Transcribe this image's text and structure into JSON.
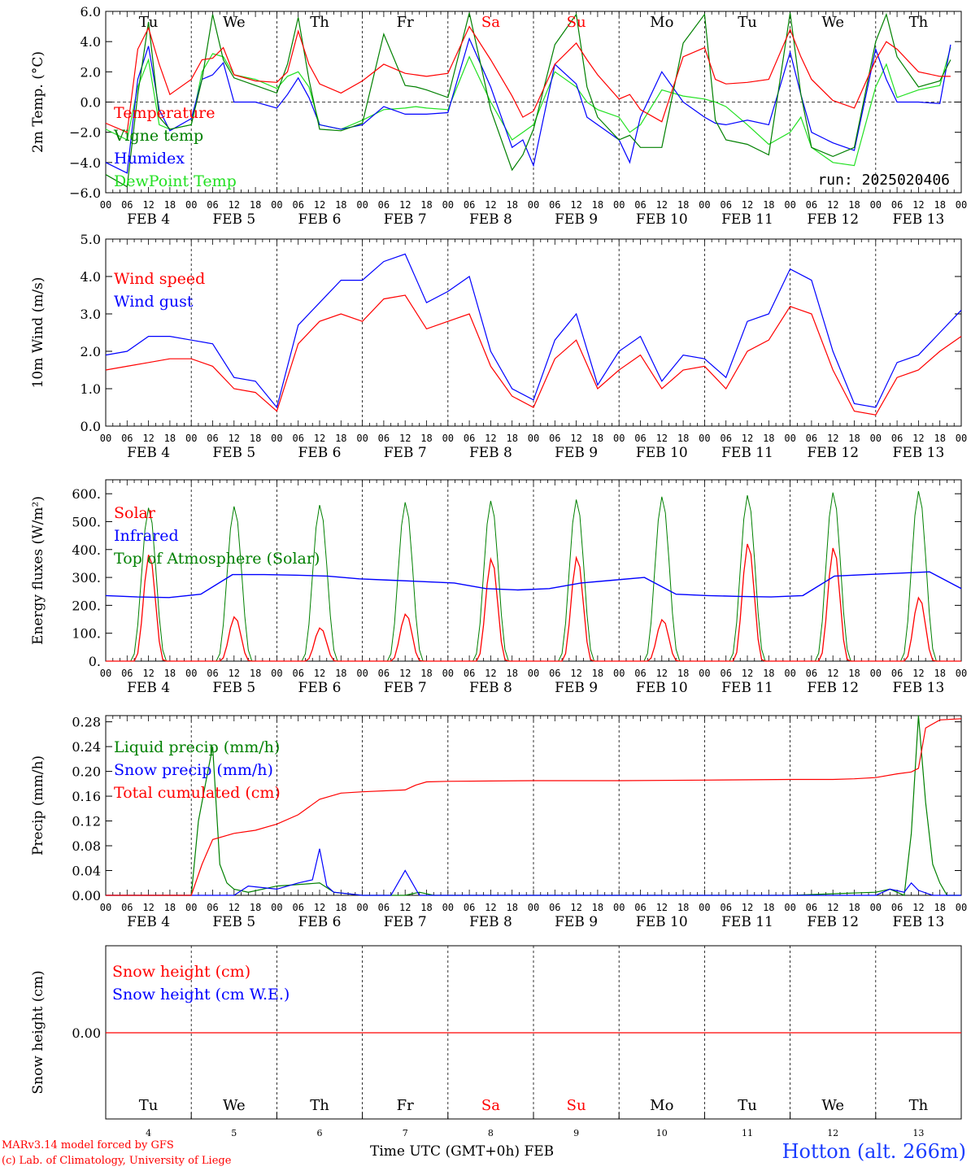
{
  "days": [
    "Tu",
    "We",
    "Th",
    "Fr",
    "Sa",
    "Su",
    "Mo",
    "Tu",
    "We",
    "Th"
  ],
  "weekend_idx": [
    4,
    5
  ],
  "date_labels": [
    "FEB  4",
    "FEB  5",
    "FEB  6",
    "FEB  7",
    "FEB  8",
    "FEB  9",
    "FEB 10",
    "FEB 11",
    "FEB 12",
    "FEB 13"
  ],
  "day_numbers": [
    "4",
    "5",
    "6",
    "7",
    "8",
    "9",
    "10",
    "11",
    "12",
    "13"
  ],
  "hour_ticks": [
    "00",
    "06",
    "12",
    "18"
  ],
  "footer": {
    "model": "MARv3.14 model forced by GFS",
    "lab": "(c) Lab. of Climatology, University of Liege",
    "xlabel": "Time UTC (GMT+0h)",
    "month": "FEB",
    "station": "Hotton (alt. 266m)"
  },
  "colors": {
    "red": "#ff0000",
    "green": "#008000",
    "blue": "#0000ff",
    "lime": "#22e022"
  },
  "chart_data": [
    {
      "type": "line",
      "ylabel": "2m Temp. (°C)",
      "ylim": [
        -6,
        6
      ],
      "yticks": [
        "6.0",
        "4.0",
        "2.0",
        "0.0",
        "−2.0",
        "−4.0",
        "−6.0"
      ],
      "annotation": "run: 2025020406",
      "x_unit": "hours since FEB 4 00 UTC",
      "series": [
        {
          "name": "Temperature",
          "color": "red",
          "x": [
            0,
            6,
            9,
            12,
            15,
            18,
            24,
            27,
            30,
            33,
            36,
            42,
            48,
            51,
            54,
            57,
            60,
            66,
            72,
            78,
            84,
            87,
            90,
            96,
            102,
            108,
            114,
            117,
            120,
            126,
            132,
            135,
            138,
            144,
            147,
            150,
            156,
            162,
            168,
            171,
            174,
            180,
            186,
            192,
            195,
            198,
            204,
            210,
            216,
            219,
            222,
            228,
            234,
            237
          ],
          "y": [
            -1.4,
            -2.0,
            3.5,
            4.9,
            2.5,
            0.5,
            1.5,
            2.8,
            2.9,
            3.6,
            1.8,
            1.4,
            1.3,
            2.0,
            4.7,
            2.5,
            1.2,
            0.6,
            1.4,
            2.5,
            1.9,
            1.8,
            1.7,
            1.9,
            5.0,
            2.8,
            0.4,
            -1.0,
            -0.6,
            2.5,
            3.9,
            2.8,
            1.8,
            0.2,
            0.5,
            -0.5,
            -1.3,
            3.0,
            3.6,
            1.5,
            1.2,
            1.3,
            1.5,
            4.8,
            3.0,
            1.5,
            0.1,
            -0.4,
            2.8,
            4.0,
            3.5,
            2.0,
            1.7,
            1.7
          ]
        },
        {
          "name": "Vigne temp",
          "color": "green",
          "x": [
            0,
            6,
            9,
            12,
            15,
            18,
            24,
            27,
            30,
            33,
            36,
            42,
            48,
            51,
            54,
            57,
            60,
            66,
            72,
            78,
            84,
            87,
            90,
            96,
            102,
            108,
            114,
            117,
            120,
            126,
            132,
            135,
            138,
            144,
            147,
            150,
            156,
            162,
            168,
            171,
            174,
            180,
            186,
            192,
            195,
            198,
            204,
            210,
            216,
            219,
            222,
            228,
            234,
            237
          ],
          "y": [
            -4.8,
            -5.6,
            0.5,
            5.3,
            -1.0,
            -1.8,
            -1.5,
            1.5,
            5.8,
            2.8,
            1.6,
            1.1,
            0.6,
            2.5,
            5.6,
            1.5,
            -1.8,
            -1.9,
            -1.4,
            4.5,
            1.1,
            1.0,
            0.8,
            0.3,
            5.9,
            -0.5,
            -4.5,
            -3.5,
            -1.8,
            3.8,
            5.8,
            1.0,
            -1.0,
            -2.5,
            -2.2,
            -3.0,
            -3.0,
            3.9,
            5.8,
            -1.2,
            -2.5,
            -2.8,
            -3.5,
            5.9,
            0.5,
            -3.0,
            -3.6,
            -3.0,
            4.0,
            5.8,
            3.0,
            1.0,
            1.4,
            2.8
          ]
        },
        {
          "name": "Humidex",
          "color": "blue",
          "x": [
            0,
            6,
            9,
            12,
            15,
            18,
            24,
            27,
            30,
            33,
            36,
            42,
            48,
            51,
            54,
            57,
            60,
            66,
            72,
            78,
            84,
            87,
            90,
            96,
            102,
            108,
            114,
            117,
            120,
            126,
            132,
            135,
            138,
            144,
            147,
            150,
            156,
            162,
            168,
            171,
            174,
            180,
            186,
            192,
            195,
            198,
            204,
            210,
            216,
            219,
            222,
            228,
            234,
            237
          ],
          "y": [
            -4.0,
            -4.7,
            1.5,
            3.7,
            -0.5,
            -1.9,
            -1.1,
            1.5,
            1.8,
            2.6,
            0.0,
            0.0,
            -0.4,
            0.5,
            1.6,
            0.3,
            -1.5,
            -1.8,
            -1.5,
            -0.3,
            -0.8,
            -0.8,
            -0.8,
            -0.7,
            4.2,
            1.0,
            -3.0,
            -2.5,
            -4.2,
            2.5,
            1.2,
            -1.0,
            -1.5,
            -2.5,
            -4.0,
            -1.0,
            2.0,
            0.0,
            -1.0,
            -1.4,
            -1.5,
            -1.2,
            -1.5,
            3.3,
            0.5,
            -2.0,
            -2.7,
            -3.2,
            3.5,
            1.5,
            0.0,
            0.0,
            -0.1,
            3.8
          ]
        },
        {
          "name": "DewPoint Temp",
          "color": "lime",
          "x": [
            0,
            6,
            9,
            12,
            15,
            18,
            24,
            27,
            30,
            33,
            36,
            42,
            48,
            51,
            54,
            57,
            60,
            66,
            72,
            78,
            84,
            87,
            90,
            96,
            102,
            108,
            114,
            117,
            120,
            126,
            132,
            135,
            138,
            144,
            147,
            150,
            156,
            162,
            168,
            171,
            174,
            180,
            186,
            192,
            195,
            198,
            204,
            210,
            216,
            219,
            222,
            228,
            234,
            237
          ],
          "y": [
            -1.8,
            -2.5,
            1.0,
            2.8,
            -1.5,
            -1.8,
            -1.5,
            2.0,
            3.2,
            3.0,
            1.8,
            1.5,
            0.9,
            1.7,
            2.0,
            1.0,
            -1.5,
            -1.8,
            -1.2,
            -0.5,
            -0.4,
            -0.3,
            -0.4,
            -0.5,
            3.0,
            0.0,
            -2.5,
            -2.0,
            -1.5,
            2.0,
            1.0,
            0.0,
            -0.5,
            -1.0,
            -2.0,
            -1.5,
            0.8,
            0.4,
            0.2,
            0.0,
            -0.3,
            -1.5,
            -2.8,
            -2.0,
            -1.0,
            -3.0,
            -4.0,
            -4.2,
            1.0,
            2.5,
            0.3,
            0.8,
            1.1,
            3.6
          ]
        }
      ]
    },
    {
      "type": "line",
      "ylabel": "10m Wind (m/s)",
      "ylim": [
        0,
        5
      ],
      "yticks": [
        "5.0",
        "4.0",
        "3.0",
        "2.0",
        "1.0",
        "0.0"
      ],
      "x_unit": "hours since FEB 4 00 UTC",
      "series": [
        {
          "name": "Wind speed",
          "color": "red",
          "x": [
            0,
            6,
            12,
            18,
            24,
            30,
            36,
            42,
            48,
            54,
            60,
            66,
            72,
            78,
            84,
            90,
            96,
            102,
            108,
            114,
            120,
            126,
            132,
            138,
            144,
            150,
            156,
            162,
            168,
            174,
            180,
            186,
            192,
            198,
            204,
            210,
            216,
            222,
            228,
            234,
            240
          ],
          "y": [
            1.5,
            1.6,
            1.7,
            1.8,
            1.8,
            1.6,
            1.0,
            0.9,
            0.4,
            2.2,
            2.8,
            3.0,
            2.8,
            3.4,
            3.5,
            2.6,
            2.8,
            3.0,
            1.6,
            0.8,
            0.5,
            1.8,
            2.3,
            1.0,
            1.5,
            1.9,
            1.0,
            1.5,
            1.6,
            1.0,
            2.0,
            2.3,
            3.2,
            3.0,
            1.5,
            0.4,
            0.3,
            1.3,
            1.5,
            2.0,
            2.4
          ]
        },
        {
          "name": "Wind gust",
          "color": "blue",
          "x": [
            0,
            6,
            12,
            18,
            24,
            30,
            36,
            42,
            48,
            54,
            60,
            66,
            72,
            78,
            84,
            90,
            96,
            102,
            108,
            114,
            120,
            126,
            132,
            138,
            144,
            150,
            156,
            162,
            168,
            174,
            180,
            186,
            192,
            198,
            204,
            210,
            216,
            222,
            228,
            234,
            240
          ],
          "y": [
            1.9,
            2.0,
            2.4,
            2.4,
            2.3,
            2.2,
            1.3,
            1.2,
            0.5,
            2.7,
            3.3,
            3.9,
            3.9,
            4.4,
            4.6,
            3.3,
            3.6,
            4.0,
            2.0,
            1.0,
            0.7,
            2.3,
            3.0,
            1.1,
            2.0,
            2.4,
            1.2,
            1.9,
            1.8,
            1.3,
            2.8,
            3.0,
            4.2,
            3.9,
            2.0,
            0.6,
            0.5,
            1.7,
            1.9,
            2.5,
            3.1
          ]
        }
      ]
    },
    {
      "type": "line",
      "ylabel": "Energy fluxes (W/m²)",
      "ylim": [
        0,
        650
      ],
      "yticks": [
        "600.",
        "500.",
        "400.",
        "300.",
        "200.",
        "100.",
        "0."
      ],
      "x_unit": "hours since FEB 4 00 UTC",
      "solar_daily_peaks": [
        385,
        160,
        120,
        170,
        370,
        375,
        150,
        425,
        410,
        230
      ],
      "toa_daily_peaks": [
        550,
        555,
        560,
        570,
        575,
        580,
        590,
        595,
        605,
        610
      ],
      "infrared": [
        235,
        230,
        228,
        240,
        310,
        310,
        308,
        305,
        295,
        290,
        285,
        280,
        260,
        255,
        260,
        280,
        290,
        300,
        240,
        235,
        232,
        230,
        235,
        305,
        310,
        315,
        320,
        260
      ],
      "series": [
        {
          "name": "Solar",
          "color": "red"
        },
        {
          "name": "Infrared",
          "color": "blue"
        },
        {
          "name": "Top of Atmosphere (Solar)",
          "color": "green"
        }
      ]
    },
    {
      "type": "line",
      "ylabel": "Precip (mm/h)",
      "ylim": [
        0,
        0.29
      ],
      "yticks": [
        "0.28",
        "0.24",
        "0.20",
        "0.16",
        "0.12",
        "0.08",
        "0.04",
        "0.00"
      ],
      "x_unit": "hours since FEB 4 00 UTC",
      "series": [
        {
          "name": "Liquid precip (mm/h)",
          "color": "green",
          "x": [
            0,
            24,
            26,
            28,
            30,
            32,
            34,
            36,
            40,
            44,
            48,
            60,
            64,
            72,
            84,
            88,
            92,
            96,
            120,
            144,
            168,
            192,
            216,
            220,
            224,
            226,
            228,
            230,
            232,
            234,
            236,
            240
          ],
          "y": [
            0,
            0,
            0.12,
            0.18,
            0.24,
            0.05,
            0.02,
            0.01,
            0.005,
            0.01,
            0.015,
            0.02,
            0.005,
            0.0,
            0.0,
            0.005,
            0.0,
            0.0,
            0.0,
            0.0,
            0.0,
            0.0,
            0.005,
            0.01,
            0.0,
            0.1,
            0.29,
            0.15,
            0.05,
            0.02,
            0.0,
            0.0
          ]
        },
        {
          "name": "Snow precip (mm/h)",
          "color": "blue",
          "x": [
            0,
            36,
            40,
            48,
            54,
            58,
            60,
            62,
            64,
            72,
            80,
            84,
            86,
            88,
            96,
            120,
            144,
            216,
            220,
            224,
            226,
            228,
            232,
            240
          ],
          "y": [
            0,
            0,
            0.015,
            0.01,
            0.02,
            0.025,
            0.075,
            0.015,
            0.005,
            0.0,
            0.0,
            0.04,
            0.02,
            0.0,
            0.0,
            0.0,
            0.0,
            0.0,
            0.01,
            0.005,
            0.02,
            0.008,
            0.0,
            0.0
          ]
        },
        {
          "name": "Total cumulated (cm)",
          "color": "red",
          "x": [
            0,
            24,
            27,
            30,
            36,
            42,
            48,
            54,
            60,
            66,
            72,
            84,
            87,
            90,
            96,
            120,
            144,
            168,
            192,
            204,
            210,
            216,
            222,
            226,
            228,
            230,
            234,
            240
          ],
          "y": [
            0,
            0,
            0.05,
            0.09,
            0.1,
            0.105,
            0.115,
            0.13,
            0.155,
            0.165,
            0.167,
            0.17,
            0.178,
            0.183,
            0.184,
            0.185,
            0.185,
            0.186,
            0.187,
            0.187,
            0.188,
            0.19,
            0.196,
            0.199,
            0.205,
            0.27,
            0.283,
            0.285
          ]
        }
      ]
    },
    {
      "type": "line",
      "ylabel": "Snow height (cm)",
      "yticks": [
        "0.00"
      ],
      "series": [
        {
          "name": "Snow height (cm)",
          "color": "red",
          "x": [
            0,
            240
          ],
          "y": [
            0,
            0
          ]
        },
        {
          "name": "Snow height (cm W.E.)",
          "color": "blue"
        }
      ]
    }
  ]
}
